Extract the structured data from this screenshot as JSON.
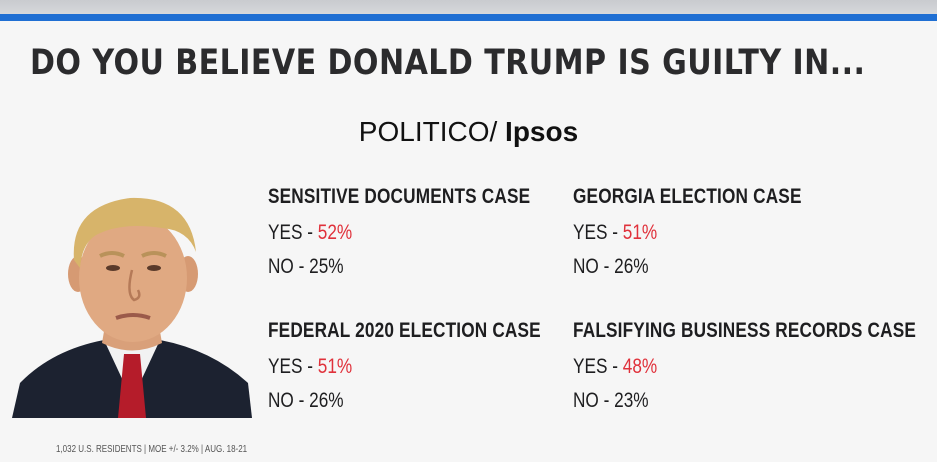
{
  "headline": "DO YOU BELIEVE DONALD TRUMP IS GUILTY IN...",
  "source": {
    "part1": "POLITICO/",
    "part2": "Ipsos"
  },
  "cases": [
    {
      "title": "SENSITIVE DOCUMENTS CASE",
      "yes_label": "YES - ",
      "yes_value": "52%",
      "no_text": "NO - 25%"
    },
    {
      "title": "GEORGIA ELECTION CASE",
      "yes_label": "YES - ",
      "yes_value": "51%",
      "no_text": "NO - 26%"
    },
    {
      "title": "FEDERAL 2020 ELECTION CASE",
      "yes_label": "YES - ",
      "yes_value": "51%",
      "no_text": "NO - 26%"
    },
    {
      "title": "FALSIFYING BUSINESS RECORDS CASE",
      "yes_label": "YES - ",
      "yes_value": "48%",
      "no_text": "NO - 23%"
    }
  ],
  "footnote": "1,032 U.S. RESIDENTS | MOE +/- 3.2% | AUG. 18-21",
  "colors": {
    "accent_bar": "#1f6fd3",
    "yes_value": "#e0313b"
  },
  "icons": {
    "portrait": "person-portrait-photo"
  }
}
